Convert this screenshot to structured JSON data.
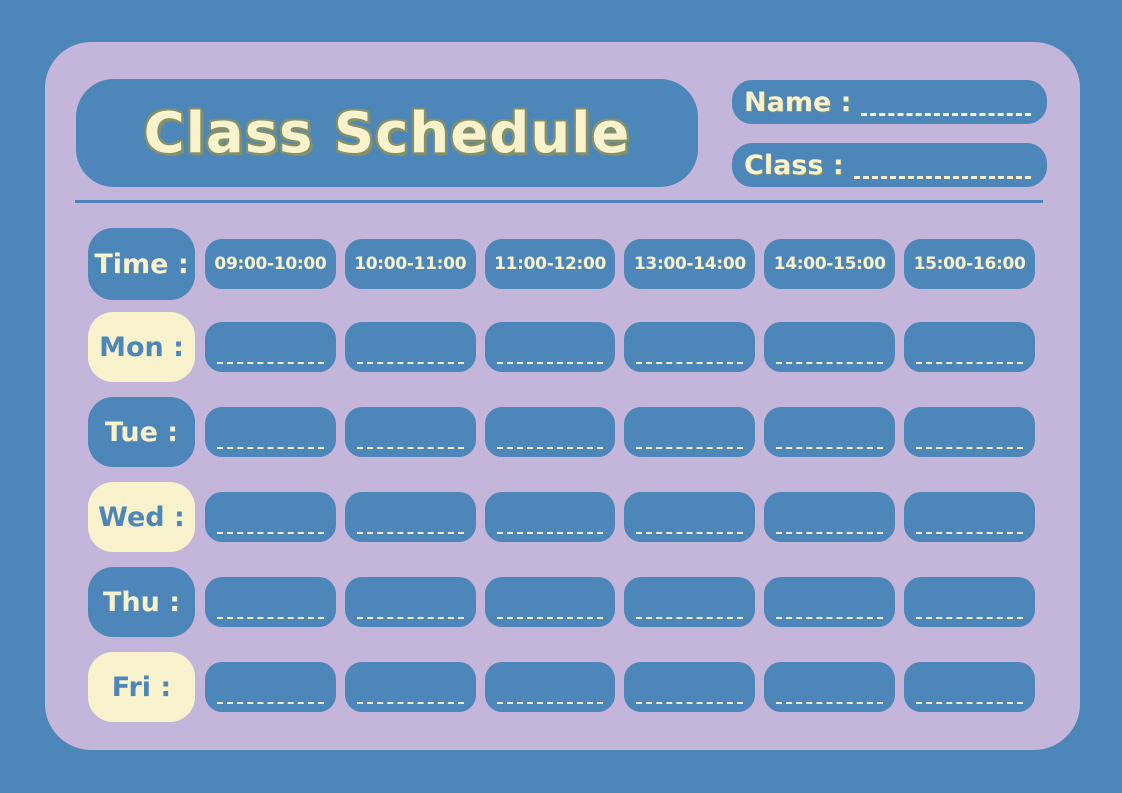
{
  "colors": {
    "background_blue": "#4d86b8",
    "card_lavender": "#c4b5da",
    "cream": "#f8f3cc",
    "title_outline_olive": "#85906a"
  },
  "header": {
    "title": "Class Schedule",
    "name_label": "Name :",
    "name_value": "",
    "class_label": "Class :",
    "class_value": ""
  },
  "schedule": {
    "time_label": "Time :",
    "time_slots": [
      "09:00-10:00",
      "10:00-11:00",
      "11:00-12:00",
      "13:00-14:00",
      "14:00-15:00",
      "15:00-16:00"
    ],
    "days": [
      "Mon :",
      "Tue :",
      "Wed :",
      "Thu :",
      "Fri :"
    ],
    "cell_value": ""
  }
}
